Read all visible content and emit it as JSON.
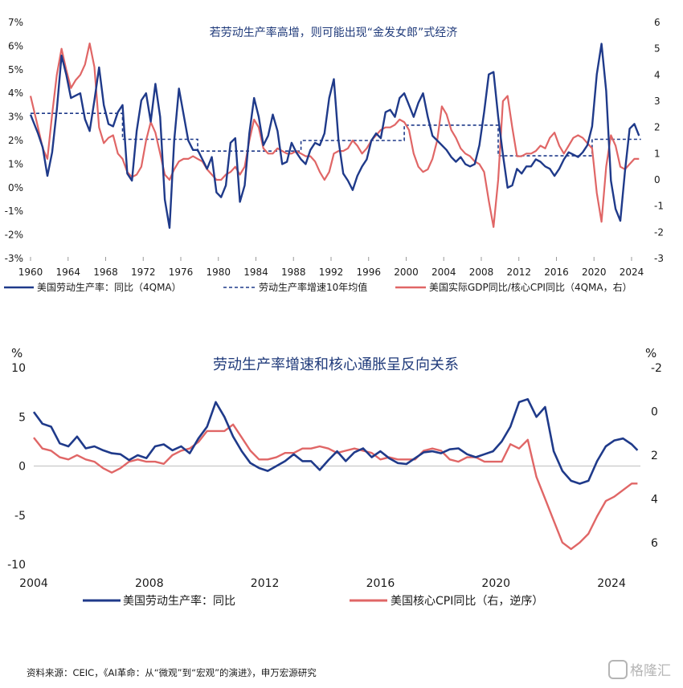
{
  "chart_data": [
    {
      "type": "line",
      "title": "若劳动生产率高增，则可能出现“金发女郎”式经济",
      "x_ticks": [
        "1960",
        "1964",
        "1968",
        "1972",
        "1976",
        "1980",
        "1984",
        "1988",
        "1992",
        "1996",
        "2000",
        "2004",
        "2008",
        "2012",
        "2016",
        "2020",
        "2024"
      ],
      "y_left_ticks": [
        "7%",
        "6%",
        "5%",
        "4%",
        "3%",
        "2%",
        "1%",
        "0%",
        "-1%",
        "-2%",
        "-3%"
      ],
      "y_right_ticks": [
        "6",
        "5",
        "4",
        "3",
        "2",
        "1",
        "0",
        "-1",
        "-2",
        "-3"
      ],
      "ylim_left": [
        -3,
        7
      ],
      "ylim_right": [
        -3,
        6
      ],
      "xlim": [
        1960,
        2025.2
      ],
      "legend": [
        "美国劳动生产率：同比（4QMA）",
        "劳动生产率增速10年均值",
        "美国实际GDP同比/核心CPI同比（4QMA，右）"
      ],
      "colors": {
        "productivity": "#1f3a8a",
        "avg10": "#1f3a8a",
        "ratio": "#e06666"
      },
      "series": [
        {
          "name": "美国劳动生产率：同比（4QMA）",
          "axis": "left",
          "x": [
            1960,
            1960.8,
            1961.3,
            1961.8,
            1962.3,
            1962.8,
            1963.3,
            1963.8,
            1964.3,
            1964.8,
            1965.3,
            1965.8,
            1966.3,
            1966.8,
            1967.3,
            1967.8,
            1968.3,
            1968.8,
            1969.3,
            1969.8,
            1970.3,
            1970.8,
            1971.3,
            1971.8,
            1972.3,
            1972.8,
            1973.3,
            1973.8,
            1974.3,
            1974.8,
            1975.3,
            1975.8,
            1976.3,
            1976.8,
            1977.3,
            1977.8,
            1978.3,
            1978.8,
            1979.3,
            1979.8,
            1980.3,
            1980.8,
            1981.3,
            1981.8,
            1982.3,
            1982.8,
            1983.3,
            1983.8,
            1984.3,
            1984.8,
            1985.3,
            1985.8,
            1986.3,
            1986.8,
            1987.3,
            1987.8,
            1988.3,
            1988.8,
            1989.3,
            1989.8,
            1990.3,
            1990.8,
            1991.3,
            1991.8,
            1992.3,
            1992.8,
            1993.3,
            1993.8,
            1994.3,
            1994.8,
            1995.3,
            1995.8,
            1996.3,
            1996.8,
            1997.3,
            1997.8,
            1998.3,
            1998.8,
            1999.3,
            1999.8,
            2000.3,
            2000.8,
            2001.3,
            2001.8,
            2002.3,
            2002.8,
            2003.3,
            2003.8,
            2004.3,
            2004.8,
            2005.3,
            2005.8,
            2006.3,
            2006.8,
            2007.3,
            2007.8,
            2008.3,
            2008.8,
            2009.3,
            2009.8,
            2010.3,
            2010.8,
            2011.3,
            2011.8,
            2012.3,
            2012.8,
            2013.3,
            2013.8,
            2014.3,
            2014.8,
            2015.3,
            2015.8,
            2016.3,
            2016.8,
            2017.3,
            2017.8,
            2018.3,
            2018.8,
            2019.3,
            2019.8,
            2020.3,
            2020.8,
            2021.3,
            2021.8,
            2022.3,
            2022.8,
            2023.3,
            2023.8,
            2024.3,
            2024.8
          ],
          "y": [
            3.1,
            2.3,
            1.7,
            0.5,
            1.5,
            3.3,
            5.6,
            4.8,
            3.8,
            3.9,
            4.0,
            2.9,
            2.4,
            3.7,
            5.1,
            3.5,
            2.7,
            2.6,
            3.2,
            3.5,
            0.6,
            0.3,
            2.4,
            3.7,
            4.0,
            2.8,
            4.4,
            3.0,
            -0.5,
            -1.7,
            2.0,
            4.2,
            3.1,
            2.0,
            1.6,
            1.6,
            1.2,
            0.8,
            1.3,
            -0.2,
            -0.4,
            0.1,
            1.9,
            2.1,
            -0.6,
            0.1,
            2.3,
            3.8,
            3.0,
            1.8,
            2.2,
            3.1,
            2.4,
            1.0,
            1.1,
            1.9,
            1.5,
            1.2,
            1.0,
            1.6,
            1.9,
            1.8,
            2.3,
            3.8,
            4.6,
            2.0,
            0.6,
            0.3,
            -0.1,
            0.5,
            0.9,
            1.2,
            2.0,
            2.3,
            2.1,
            3.2,
            3.3,
            3.0,
            3.8,
            4.0,
            3.5,
            3.0,
            3.6,
            4.0,
            3.0,
            2.2,
            2.0,
            1.8,
            1.6,
            1.3,
            1.1,
            1.3,
            1.0,
            0.9,
            1.0,
            1.8,
            3.2,
            4.8,
            4.9,
            3.0,
            1.4,
            0.0,
            0.1,
            0.8,
            0.6,
            0.9,
            0.9,
            1.2,
            1.1,
            0.9,
            0.8,
            0.5,
            0.8,
            1.2,
            1.5,
            1.4,
            1.3,
            1.5,
            1.8,
            2.6,
            4.8,
            6.1,
            4.1,
            0.3,
            -0.9,
            -1.4,
            0.7,
            2.5,
            2.7,
            2.2
          ]
        },
        {
          "name": "劳动生产率增速10年均值",
          "axis": "left",
          "style": "dashed",
          "x": [
            1960,
            1969.8,
            1969.8,
            1977.8,
            1977.8,
            1988.8,
            1988.8,
            1999.8,
            1999.8,
            2009.8,
            2009.8,
            2019.8,
            2019.8,
            2025
          ],
          "y": [
            3.15,
            3.15,
            2.05,
            2.05,
            1.55,
            1.55,
            2.0,
            2.0,
            2.65,
            2.65,
            1.35,
            1.35,
            2.05,
            2.05
          ]
        },
        {
          "name": "美国实际GDP同比/核心CPI同比（4QMA，右）",
          "axis": "right",
          "x": [
            1960,
            1960.8,
            1961.3,
            1961.8,
            1962.3,
            1962.8,
            1963.3,
            1963.8,
            1964.3,
            1964.8,
            1965.3,
            1965.8,
            1966.3,
            1966.8,
            1967.3,
            1967.8,
            1968.3,
            1968.8,
            1969.3,
            1969.8,
            1970.3,
            1970.8,
            1971.3,
            1971.8,
            1972.3,
            1972.8,
            1973.3,
            1973.8,
            1974.3,
            1974.8,
            1975.3,
            1975.8,
            1976.3,
            1976.8,
            1977.3,
            1977.8,
            1978.3,
            1978.8,
            1979.3,
            1979.8,
            1980.3,
            1980.8,
            1981.3,
            1981.8,
            1982.3,
            1982.8,
            1983.3,
            1983.8,
            1984.3,
            1984.8,
            1985.3,
            1985.8,
            1986.3,
            1986.8,
            1987.3,
            1987.8,
            1988.3,
            1988.8,
            1989.3,
            1989.8,
            1990.3,
            1990.8,
            1991.3,
            1991.8,
            1992.3,
            1992.8,
            1993.3,
            1993.8,
            1994.3,
            1994.8,
            1995.3,
            1995.8,
            1996.3,
            1996.8,
            1997.3,
            1997.8,
            1998.3,
            1998.8,
            1999.3,
            1999.8,
            2000.3,
            2000.8,
            2001.3,
            2001.8,
            2002.3,
            2002.8,
            2003.3,
            2003.8,
            2004.3,
            2004.8,
            2005.3,
            2005.8,
            2006.3,
            2006.8,
            2007.3,
            2007.8,
            2008.3,
            2008.8,
            2009.3,
            2009.8,
            2010.3,
            2010.8,
            2011.3,
            2011.8,
            2012.3,
            2012.8,
            2013.3,
            2013.8,
            2014.3,
            2014.8,
            2015.3,
            2015.8,
            2016.3,
            2016.8,
            2017.3,
            2017.8,
            2018.3,
            2018.8,
            2019.3,
            2019.8,
            2020.3,
            2020.8,
            2021.3,
            2021.8,
            2022.3,
            2022.8,
            2023.3,
            2023.8,
            2024.3,
            2024.8
          ],
          "y": [
            3.2,
            2.0,
            1.2,
            0.8,
            2.5,
            4.0,
            5.0,
            4.2,
            3.5,
            3.8,
            4.0,
            4.4,
            5.2,
            4.3,
            2.0,
            1.4,
            1.6,
            1.7,
            1.0,
            0.8,
            0.3,
            0.1,
            0.2,
            0.5,
            1.5,
            2.2,
            1.8,
            1.0,
            0.2,
            0.0,
            0.4,
            0.7,
            0.8,
            0.8,
            0.9,
            0.8,
            0.7,
            0.4,
            0.2,
            0.0,
            0.0,
            0.2,
            0.3,
            0.5,
            0.2,
            0.5,
            1.5,
            2.3,
            2.0,
            1.2,
            1.0,
            1.0,
            1.2,
            1.1,
            1.0,
            1.0,
            1.1,
            1.0,
            0.9,
            0.9,
            0.7,
            0.3,
            0.0,
            0.3,
            1.0,
            1.1,
            1.1,
            1.2,
            1.5,
            1.3,
            1.0,
            1.2,
            1.5,
            1.7,
            1.9,
            2.0,
            2.0,
            2.1,
            2.3,
            2.2,
            1.9,
            1.0,
            0.5,
            0.3,
            0.4,
            0.8,
            1.5,
            2.8,
            2.5,
            1.9,
            1.6,
            1.2,
            1.0,
            0.9,
            0.7,
            0.6,
            0.3,
            -0.8,
            -1.8,
            0.0,
            3.0,
            3.2,
            2.0,
            0.9,
            0.9,
            1.0,
            1.0,
            1.1,
            1.3,
            1.2,
            1.6,
            1.8,
            1.3,
            1.0,
            1.3,
            1.6,
            1.7,
            1.6,
            1.4,
            1.2,
            -0.5,
            -1.6,
            0.5,
            1.7,
            1.3,
            0.5,
            0.4,
            0.6,
            0.8,
            0.8
          ]
        }
      ]
    },
    {
      "type": "line",
      "title": "劳动生产率增速和核心通胀呈反向关系",
      "unit_left": "%",
      "unit_right": "%",
      "x_ticks": [
        "2004",
        "2008",
        "2012",
        "2016",
        "2020",
        "2024"
      ],
      "y_left_ticks": [
        "10",
        "5",
        "0",
        "-5",
        "-10"
      ],
      "y_right_ticks": [
        "-2",
        "0",
        "2",
        "4",
        "6"
      ],
      "ylim_left": [
        -10,
        10
      ],
      "ylim_right_inverted": [
        -2,
        7
      ],
      "xlim": [
        2004,
        2025
      ],
      "legend": [
        "美国劳动生产率：同比",
        "美国核心CPI同比（右，逆序）"
      ],
      "colors": {
        "productivity": "#1f3a8a",
        "cpi": "#e06666"
      },
      "series": [
        {
          "name": "美国劳动生产率：同比",
          "axis": "left",
          "x": [
            2004,
            2004.3,
            2004.6,
            2004.9,
            2005.2,
            2005.5,
            2005.8,
            2006.1,
            2006.4,
            2006.7,
            2007.0,
            2007.3,
            2007.6,
            2007.9,
            2008.2,
            2008.5,
            2008.8,
            2009.1,
            2009.4,
            2009.7,
            2010.0,
            2010.3,
            2010.6,
            2010.9,
            2011.2,
            2011.5,
            2011.8,
            2012.1,
            2012.4,
            2012.7,
            2013.0,
            2013.3,
            2013.6,
            2013.9,
            2014.2,
            2014.5,
            2014.8,
            2015.1,
            2015.4,
            2015.7,
            2016.0,
            2016.3,
            2016.6,
            2016.9,
            2017.2,
            2017.5,
            2017.8,
            2018.1,
            2018.4,
            2018.7,
            2019.0,
            2019.3,
            2019.6,
            2019.9,
            2020.2,
            2020.5,
            2020.8,
            2021.1,
            2021.4,
            2021.7,
            2022.0,
            2022.3,
            2022.6,
            2022.9,
            2023.2,
            2023.5,
            2023.8,
            2024.1,
            2024.4,
            2024.7,
            2024.9
          ],
          "y": [
            5.5,
            4.3,
            4.0,
            2.3,
            2.0,
            3.0,
            1.8,
            2.0,
            1.6,
            1.3,
            1.2,
            0.6,
            1.1,
            0.8,
            2.0,
            2.2,
            1.6,
            2.0,
            1.3,
            2.8,
            4.0,
            6.5,
            5.0,
            3.0,
            1.5,
            0.3,
            -0.2,
            -0.5,
            0.0,
            0.5,
            1.2,
            0.5,
            0.5,
            -0.4,
            0.6,
            1.5,
            0.5,
            1.4,
            1.8,
            0.9,
            1.5,
            0.8,
            0.3,
            0.2,
            0.8,
            1.4,
            1.5,
            1.3,
            1.7,
            1.8,
            1.2,
            0.9,
            1.2,
            1.5,
            2.5,
            4.0,
            6.5,
            6.8,
            5.0,
            6.0,
            1.5,
            -0.5,
            -1.5,
            -1.8,
            -1.5,
            0.5,
            2.0,
            2.6,
            2.8,
            2.2,
            1.6
          ]
        },
        {
          "name": "美国核心CPI同比（右，逆序）",
          "axis": "right_inverted",
          "x": [
            2004,
            2004.3,
            2004.6,
            2004.9,
            2005.2,
            2005.5,
            2005.8,
            2006.1,
            2006.4,
            2006.7,
            2007.0,
            2007.3,
            2007.6,
            2007.9,
            2008.2,
            2008.5,
            2008.8,
            2009.1,
            2009.4,
            2009.7,
            2010.0,
            2010.3,
            2010.6,
            2010.9,
            2011.2,
            2011.5,
            2011.8,
            2012.1,
            2012.4,
            2012.7,
            2013.0,
            2013.3,
            2013.6,
            2013.9,
            2014.2,
            2014.5,
            2014.8,
            2015.1,
            2015.4,
            2015.7,
            2016.0,
            2016.3,
            2016.6,
            2016.9,
            2017.2,
            2017.5,
            2017.8,
            2018.1,
            2018.4,
            2018.7,
            2019.0,
            2019.3,
            2019.6,
            2019.9,
            2020.2,
            2020.5,
            2020.8,
            2021.1,
            2021.4,
            2021.7,
            2022.0,
            2022.3,
            2022.6,
            2022.9,
            2023.2,
            2023.5,
            2023.8,
            2024.1,
            2024.4,
            2024.7,
            2024.9
          ],
          "y": [
            1.2,
            1.7,
            1.8,
            2.1,
            2.2,
            2.0,
            2.2,
            2.3,
            2.6,
            2.8,
            2.6,
            2.3,
            2.2,
            2.3,
            2.3,
            2.4,
            2.0,
            1.8,
            1.7,
            1.4,
            0.9,
            0.9,
            0.9,
            0.6,
            1.2,
            1.8,
            2.2,
            2.2,
            2.1,
            1.9,
            1.9,
            1.7,
            1.7,
            1.6,
            1.7,
            1.9,
            1.8,
            1.7,
            1.8,
            1.9,
            2.2,
            2.1,
            2.2,
            2.2,
            2.2,
            1.8,
            1.7,
            1.8,
            2.2,
            2.3,
            2.1,
            2.1,
            2.3,
            2.3,
            2.3,
            1.5,
            1.7,
            1.3,
            3.0,
            4.0,
            5.0,
            6.0,
            6.3,
            6.0,
            5.6,
            4.8,
            4.1,
            3.9,
            3.6,
            3.3,
            3.3
          ]
        }
      ]
    }
  ],
  "source_text": "资料来源：CEIC，《AI革命：从“微观”到“宏观”的演进》，申万宏源研究",
  "watermark": "格隆汇"
}
